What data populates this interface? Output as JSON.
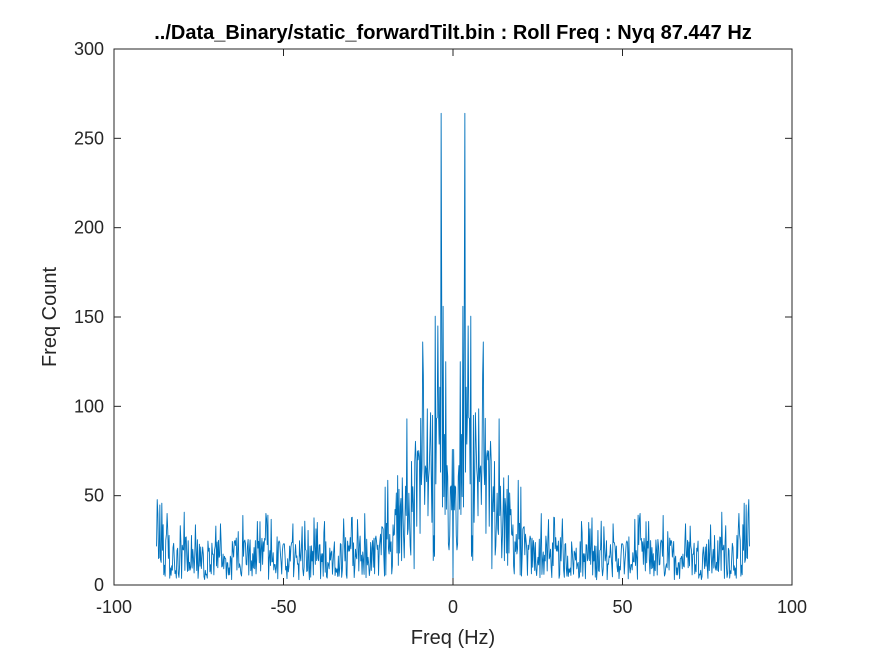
{
  "chart_data": {
    "type": "line",
    "title": "../Data_Binary/static_forwardTilt.bin : Roll Freq : Nyq 87.447 Hz",
    "xlabel": "Freq (Hz)",
    "ylabel": "Freq Count",
    "xlim": [
      -100,
      100
    ],
    "ylim": [
      0,
      300
    ],
    "xticks": [
      -100,
      -50,
      0,
      50,
      100
    ],
    "yticks": [
      0,
      50,
      100,
      150,
      200,
      250,
      300
    ],
    "grid": false,
    "box": true,
    "line_color": "#0072BD",
    "nyquist_hz": 87.447,
    "series": [
      {
        "envelope": [
          {
            "x": -87.4,
            "y": 18
          },
          {
            "x": -80,
            "y": 16
          },
          {
            "x": -70,
            "y": 15
          },
          {
            "x": -60,
            "y": 15
          },
          {
            "x": -50,
            "y": 15
          },
          {
            "x": -40,
            "y": 14
          },
          {
            "x": -30,
            "y": 15
          },
          {
            "x": -22,
            "y": 16
          },
          {
            "x": -18,
            "y": 25
          },
          {
            "x": -15,
            "y": 35
          },
          {
            "x": -12,
            "y": 42
          },
          {
            "x": -10,
            "y": 48
          },
          {
            "x": -8,
            "y": 55
          },
          {
            "x": -6,
            "y": 65
          },
          {
            "x": -4,
            "y": 75
          },
          {
            "x": -2,
            "y": 45
          },
          {
            "x": 0,
            "y": 30
          },
          {
            "x": 2,
            "y": 45
          },
          {
            "x": 4,
            "y": 75
          },
          {
            "x": 6,
            "y": 65
          },
          {
            "x": 8,
            "y": 55
          },
          {
            "x": 10,
            "y": 48
          },
          {
            "x": 12,
            "y": 42
          },
          {
            "x": 15,
            "y": 35
          },
          {
            "x": 18,
            "y": 25
          },
          {
            "x": 22,
            "y": 16
          },
          {
            "x": 30,
            "y": 15
          },
          {
            "x": 40,
            "y": 14
          },
          {
            "x": 50,
            "y": 15
          },
          {
            "x": 60,
            "y": 15
          },
          {
            "x": 70,
            "y": 15
          },
          {
            "x": 80,
            "y": 16
          },
          {
            "x": 87.4,
            "y": 18
          }
        ],
        "peaks": [
          {
            "x": -3.5,
            "y": 264
          },
          {
            "x": 3.5,
            "y": 264
          },
          {
            "x": -3.0,
            "y": 156
          },
          {
            "x": 3.0,
            "y": 156
          },
          {
            "x": -4.5,
            "y": 145
          },
          {
            "x": 4.5,
            "y": 145
          },
          {
            "x": -9.0,
            "y": 136
          },
          {
            "x": 9.0,
            "y": 136
          },
          {
            "x": -2.2,
            "y": 125
          },
          {
            "x": 2.2,
            "y": 125
          },
          {
            "x": -6.0,
            "y": 95
          },
          {
            "x": 6.0,
            "y": 95
          },
          {
            "x": -15.0,
            "y": 60
          },
          {
            "x": 15.0,
            "y": 60
          },
          {
            "x": -10.5,
            "y": 75
          },
          {
            "x": 10.5,
            "y": 75
          },
          {
            "x": -87.0,
            "y": 40
          },
          {
            "x": 87.0,
            "y": 40
          },
          {
            "x": -70.0,
            "y": 33
          },
          {
            "x": 70.0,
            "y": 33
          },
          {
            "x": -55.0,
            "y": 37
          },
          {
            "x": 55.0,
            "y": 37
          },
          {
            "x": -40.0,
            "y": 35
          },
          {
            "x": 40.0,
            "y": 35
          },
          {
            "x": -26.0,
            "y": 40
          },
          {
            "x": 26.0,
            "y": 40
          }
        ]
      }
    ]
  }
}
